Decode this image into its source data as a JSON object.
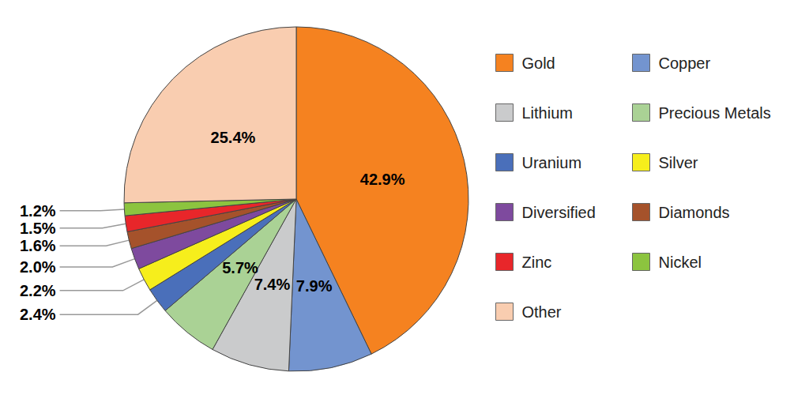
{
  "chart_data": {
    "type": "pie",
    "categories": [
      "Gold",
      "Copper",
      "Lithium",
      "Precious Metals",
      "Uranium",
      "Silver",
      "Diversified",
      "Diamonds",
      "Zinc",
      "Nickel",
      "Other"
    ],
    "values": [
      42.9,
      7.9,
      7.4,
      5.7,
      2.4,
      2.2,
      2.0,
      1.6,
      1.5,
      1.2,
      25.4
    ],
    "value_labels": [
      "42.9%",
      "7.9%",
      "7.4%",
      "5.7%",
      "2.4%",
      "2.2%",
      "2.0%",
      "1.6%",
      "1.5%",
      "1.2%",
      "25.4%"
    ],
    "colors": [
      "#f58220",
      "#7394cf",
      "#cacbcc",
      "#aad295",
      "#4a6fba",
      "#f6ee1c",
      "#7e4a9e",
      "#a5522b",
      "#e8262a",
      "#8cc43f",
      "#f9cdb0"
    ],
    "data_labels": true,
    "legend": "right"
  }
}
